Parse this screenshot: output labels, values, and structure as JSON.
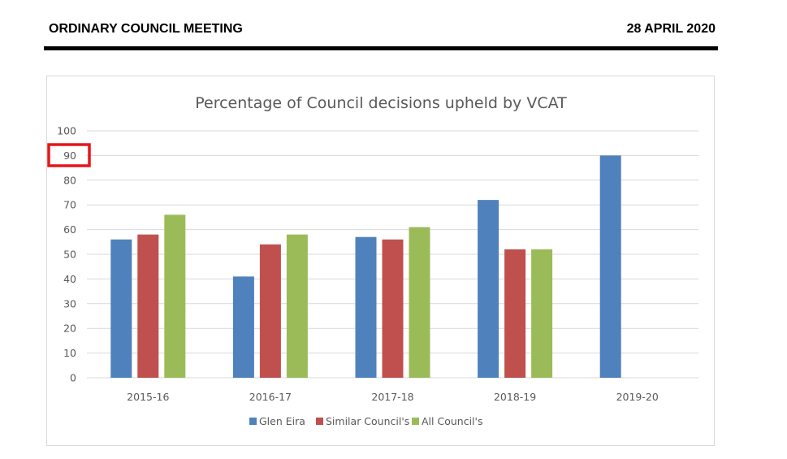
{
  "header": {
    "meeting_title": "ORDINARY COUNCIL MEETING",
    "meeting_date": "28 APRIL 2020"
  },
  "highlight": {
    "label": "90",
    "color": "#e8151b"
  },
  "chart_data": {
    "type": "bar",
    "title": "Percentage of Council decisions upheld by VCAT",
    "xlabel": "",
    "ylabel": "",
    "ylim": [
      0,
      100
    ],
    "yticks": [
      0,
      10,
      20,
      30,
      40,
      50,
      60,
      70,
      80,
      90,
      100
    ],
    "grid": true,
    "legend_position": "bottom",
    "categories": [
      "2015-16",
      "2016-17",
      "2017-18",
      "2018-19",
      "2019-20"
    ],
    "series": [
      {
        "name": "Glen Eira",
        "color": "#4f81bd",
        "values": [
          56,
          41,
          57,
          72,
          90
        ]
      },
      {
        "name": "Similar Council's",
        "color": "#c0504d",
        "values": [
          58,
          54,
          56,
          52,
          null
        ]
      },
      {
        "name": "All Council's",
        "color": "#9bbb59",
        "values": [
          66,
          58,
          61,
          52,
          null
        ]
      }
    ]
  }
}
